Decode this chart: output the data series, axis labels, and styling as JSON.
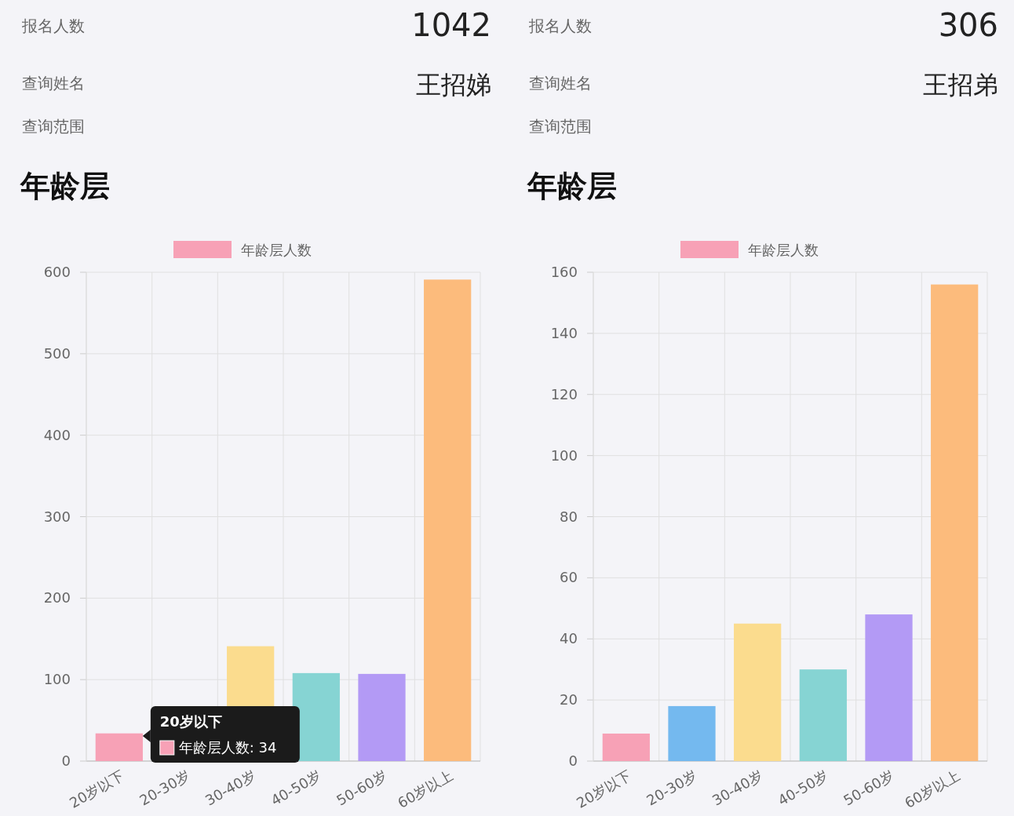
{
  "chart_data": [
    {
      "type": "bar",
      "title": "年龄层",
      "annotations": [
        "报名人数",
        "1042",
        "查询姓名",
        "王招娣",
        "查询范围",
        "20岁以下",
        "年龄层人数: 34"
      ],
      "categories": [
        "20岁以下",
        "20-30岁",
        "30-40岁",
        "40-50岁",
        "50-60岁",
        "60岁以上"
      ],
      "series": [
        {
          "name": "年龄层人数",
          "color": "#f7a1b6",
          "values": [
            34,
            null,
            141,
            108,
            107,
            591
          ],
          "colors": [
            "#f7a1b6",
            "#74b9ef",
            "#fbdc8e",
            "#86d4d3",
            "#b39af5",
            "#fcbb7c"
          ]
        }
      ],
      "ylim": [
        0,
        600
      ],
      "yticks": [
        0,
        100,
        200,
        300,
        400,
        500,
        600
      ],
      "grid": true,
      "legend": "top"
    },
    {
      "type": "bar",
      "title": "年龄层",
      "annotations": [
        "报名人数",
        "306",
        "查询姓名",
        "王招弟",
        "查询范围"
      ],
      "categories": [
        "20岁以下",
        "20-30岁",
        "30-40岁",
        "40-50岁",
        "50-60岁",
        "60岁以上"
      ],
      "series": [
        {
          "name": "年龄层人数",
          "color": "#f7a1b6",
          "values": [
            9,
            18,
            45,
            30,
            48,
            156
          ],
          "colors": [
            "#f7a1b6",
            "#74b9ef",
            "#fbdc8e",
            "#86d4d3",
            "#b39af5",
            "#fcbb7c"
          ]
        }
      ],
      "ylim": [
        0,
        160
      ],
      "yticks": [
        0,
        20,
        40,
        60,
        80,
        100,
        120,
        140,
        160
      ],
      "grid": true,
      "legend": "top"
    }
  ]
}
